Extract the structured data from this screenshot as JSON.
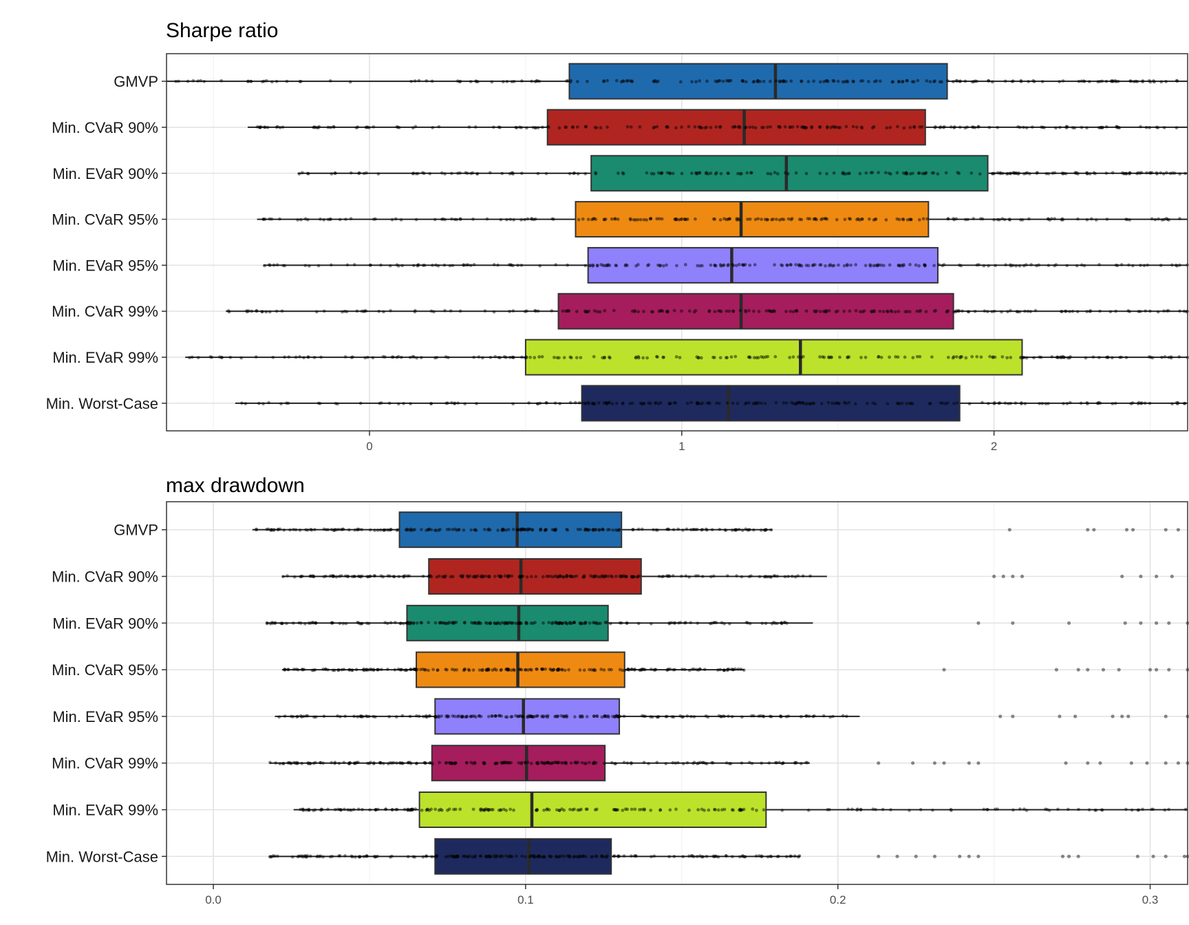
{
  "chart_data": [
    {
      "type": "boxplot",
      "title": "Sharpe ratio",
      "xlabel": "",
      "ylabel": "",
      "xlim": [
        -0.65,
        2.62
      ],
      "xticks": [
        0,
        1,
        2
      ],
      "xtick_labels": [
        "0",
        "1",
        "2"
      ],
      "grid": true,
      "categories": [
        "GMVP",
        "Min. CVaR 90%",
        "Min. EVaR 90%",
        "Min. CVaR 95%",
        "Min. EVaR 95%",
        "Min. CVaR 99%",
        "Min. EVaR 99%",
        "Min. Worst-Case"
      ],
      "colors": [
        "#1f6aad",
        "#b02520",
        "#1a8b6f",
        "#ee8a12",
        "#8f80fb",
        "#a51d5c",
        "#bde22b",
        "#1e2a5e"
      ],
      "series": [
        {
          "category": "GMVP",
          "whisker_low": -0.65,
          "q1": 0.64,
          "median": 1.3,
          "q3": 1.85,
          "whisker_high": 2.62,
          "outliers": []
        },
        {
          "category": "Min. CVaR 90%",
          "whisker_low": -0.39,
          "q1": 0.57,
          "median": 1.2,
          "q3": 1.78,
          "whisker_high": 2.62,
          "outliers": []
        },
        {
          "category": "Min. EVaR 90%",
          "whisker_low": -0.23,
          "q1": 0.71,
          "median": 1.335,
          "q3": 1.98,
          "whisker_high": 2.62,
          "outliers": []
        },
        {
          "category": "Min. CVaR 95%",
          "whisker_low": -0.36,
          "q1": 0.66,
          "median": 1.19,
          "q3": 1.79,
          "whisker_high": 2.62,
          "outliers": []
        },
        {
          "category": "Min. EVaR 95%",
          "whisker_low": -0.34,
          "q1": 0.7,
          "median": 1.16,
          "q3": 1.82,
          "whisker_high": 2.62,
          "outliers": []
        },
        {
          "category": "Min. CVaR 99%",
          "whisker_low": -0.46,
          "q1": 0.605,
          "median": 1.19,
          "q3": 1.87,
          "whisker_high": 2.62,
          "outliers": []
        },
        {
          "category": "Min. EVaR 99%",
          "whisker_low": -0.59,
          "q1": 0.5,
          "median": 1.38,
          "q3": 2.09,
          "whisker_high": 2.62,
          "outliers": []
        },
        {
          "category": "Min. Worst-Case",
          "whisker_low": -0.43,
          "q1": 0.68,
          "median": 1.15,
          "q3": 1.89,
          "whisker_high": 2.62,
          "outliers": []
        }
      ]
    },
    {
      "type": "boxplot",
      "title": "max drawdown",
      "xlabel": "",
      "ylabel": "",
      "xlim": [
        -0.015,
        0.312
      ],
      "xticks": [
        0,
        0.1,
        0.2,
        0.3
      ],
      "xtick_labels": [
        "0.0",
        "0.1",
        "0.2",
        "0.3"
      ],
      "grid": true,
      "categories": [
        "GMVP",
        "Min. CVaR 90%",
        "Min. EVaR 90%",
        "Min. CVaR 95%",
        "Min. EVaR 95%",
        "Min. CVaR 99%",
        "Min. EVaR 99%",
        "Min. Worst-Case"
      ],
      "colors": [
        "#1f6aad",
        "#b02520",
        "#1a8b6f",
        "#ee8a12",
        "#8f80fb",
        "#a51d5c",
        "#bde22b",
        "#1e2a5e"
      ],
      "series": [
        {
          "category": "GMVP",
          "whisker_low": 0.0125,
          "q1": 0.0596,
          "median": 0.0973,
          "q3": 0.1307,
          "whisker_high": 0.179,
          "outliers": [
            0.255,
            0.28,
            0.282,
            0.2925,
            0.2945,
            0.305,
            0.309
          ]
        },
        {
          "category": "Min. CVaR 90%",
          "whisker_low": 0.022,
          "q1": 0.069,
          "median": 0.0985,
          "q3": 0.137,
          "whisker_high": 0.1965,
          "outliers": [
            0.25,
            0.253,
            0.256,
            0.259,
            0.291,
            0.297,
            0.302,
            0.307
          ]
        },
        {
          "category": "Min. EVaR 90%",
          "whisker_low": 0.017,
          "q1": 0.062,
          "median": 0.0978,
          "q3": 0.1264,
          "whisker_high": 0.192,
          "outliers": [
            0.245,
            0.256,
            0.274,
            0.292,
            0.297,
            0.302,
            0.306,
            0.312
          ]
        },
        {
          "category": "Min. CVaR 95%",
          "whisker_low": 0.022,
          "q1": 0.065,
          "median": 0.0975,
          "q3": 0.1317,
          "whisker_high": 0.17,
          "outliers": [
            0.234,
            0.27,
            0.277,
            0.28,
            0.285,
            0.29,
            0.3,
            0.302,
            0.306,
            0.313
          ]
        },
        {
          "category": "Min. EVaR 95%",
          "whisker_low": 0.0197,
          "q1": 0.071,
          "median": 0.0993,
          "q3": 0.13,
          "whisker_high": 0.207,
          "outliers": [
            0.252,
            0.256,
            0.271,
            0.276,
            0.288,
            0.291,
            0.293,
            0.305,
            0.312
          ]
        },
        {
          "category": "Min. CVaR 99%",
          "whisker_low": 0.018,
          "q1": 0.07,
          "median": 0.1003,
          "q3": 0.1254,
          "whisker_high": 0.191,
          "outliers": [
            0.213,
            0.224,
            0.231,
            0.234,
            0.242,
            0.245,
            0.273,
            0.28,
            0.284,
            0.294,
            0.299,
            0.305,
            0.309,
            0.312
          ]
        },
        {
          "category": "Min. EVaR 99%",
          "whisker_low": 0.0257,
          "q1": 0.066,
          "median": 0.102,
          "q3": 0.177,
          "whisker_high": 0.312,
          "outliers": []
        },
        {
          "category": "Min. Worst-Case",
          "whisker_low": 0.018,
          "q1": 0.071,
          "median": 0.101,
          "q3": 0.1274,
          "whisker_high": 0.188,
          "outliers": [
            0.213,
            0.219,
            0.225,
            0.231,
            0.239,
            0.242,
            0.245,
            0.272,
            0.274,
            0.277,
            0.296,
            0.301,
            0.305,
            0.311,
            0.312
          ]
        }
      ]
    }
  ]
}
